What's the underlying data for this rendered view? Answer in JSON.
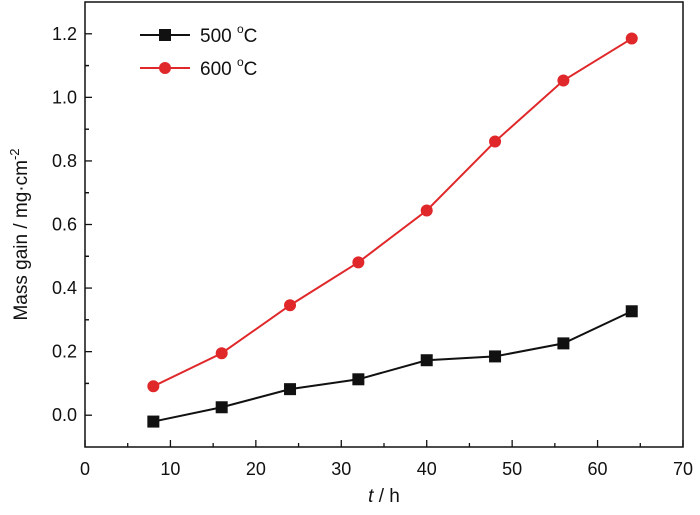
{
  "chart_data": {
    "type": "line",
    "xlabel_italic": "t",
    "xlabel_rest": " / h",
    "ylabel": "Mass gain / mg·cm",
    "ylabel_sup": "-2",
    "xlim": [
      0,
      70
    ],
    "ylim": [
      -0.1,
      1.3
    ],
    "xticks": [
      "0",
      "10",
      "20",
      "30",
      "40",
      "50",
      "60",
      "70"
    ],
    "yticks": [
      "0.0",
      "0.2",
      "0.4",
      "0.6",
      "0.8",
      "1.0",
      "1.2"
    ],
    "grid": false,
    "legend_position": "top-left",
    "x": [
      8,
      16,
      24,
      32,
      40,
      48,
      56,
      64
    ],
    "series": [
      {
        "name": "500 °C",
        "label": "500 ",
        "sup": "o",
        "unit": "C",
        "marker": "square",
        "color": "#111111",
        "values": [
          -0.02,
          0.025,
          0.082,
          0.113,
          0.173,
          0.185,
          0.226,
          0.327
        ]
      },
      {
        "name": "600 °C",
        "label": "600 ",
        "sup": "o",
        "unit": "C",
        "marker": "circle",
        "color": "#e0282a",
        "values": [
          0.091,
          0.195,
          0.346,
          0.481,
          0.644,
          0.861,
          1.053,
          1.185
        ]
      }
    ]
  }
}
